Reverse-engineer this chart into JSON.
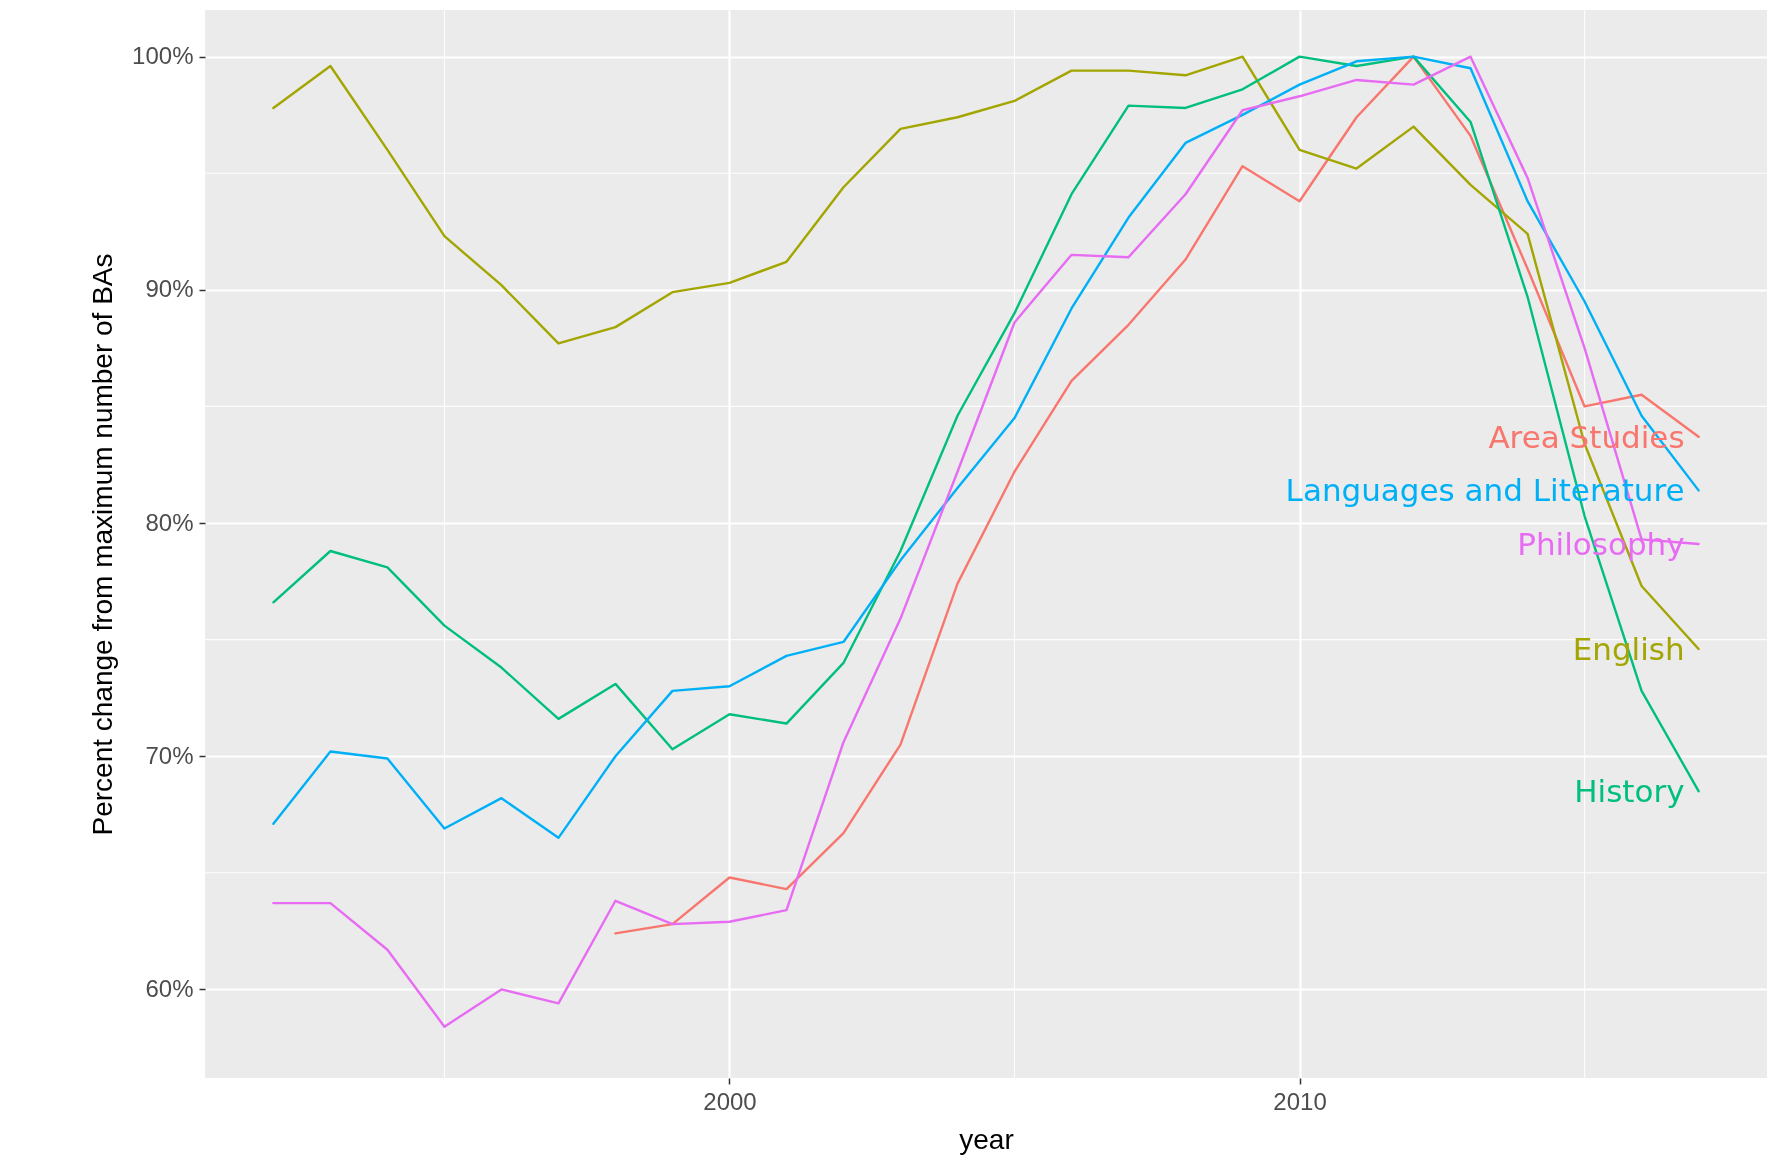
{
  "chart_data": {
    "type": "line",
    "xlabel": "year",
    "ylabel": "Percent change from maximum number of BAs",
    "x": [
      1992,
      1993,
      1994,
      1995,
      1996,
      1997,
      1998,
      1999,
      2000,
      2001,
      2002,
      2003,
      2004,
      2005,
      2006,
      2007,
      2008,
      2009,
      2010,
      2011,
      2012,
      2013,
      2014,
      2015,
      2016,
      2017
    ],
    "series": [
      {
        "name": "Area Studies",
        "color": "#f8766d",
        "values": [
          null,
          null,
          null,
          null,
          null,
          null,
          62.4,
          62.8,
          64.8,
          64.3,
          66.7,
          70.5,
          77.4,
          82.2,
          86.1,
          88.5,
          91.3,
          95.3,
          93.8,
          97.4,
          100,
          96.6,
          90.9,
          85.0,
          85.5,
          83.7
        ]
      },
      {
        "name": "English",
        "color": "#a3a500",
        "values": [
          97.8,
          99.6,
          96.0,
          92.3,
          90.2,
          87.7,
          88.4,
          89.9,
          90.3,
          91.2,
          94.4,
          96.9,
          97.4,
          98.1,
          99.4,
          99.4,
          99.2,
          100,
          96.0,
          95.2,
          97.0,
          94.5,
          92.4,
          83.4,
          77.3,
          74.6
        ]
      },
      {
        "name": "History",
        "color": "#00bf7d",
        "values": [
          76.6,
          78.8,
          78.1,
          75.6,
          73.8,
          71.6,
          73.1,
          70.3,
          71.8,
          71.4,
          74.0,
          78.8,
          84.6,
          89.0,
          94.1,
          97.9,
          97.8,
          98.6,
          100,
          99.6,
          100,
          97.2,
          89.7,
          80.3,
          72.8,
          68.5
        ]
      },
      {
        "name": "Languages and Literature",
        "color": "#00b0f6",
        "values": [
          67.1,
          70.2,
          69.9,
          66.9,
          68.2,
          66.5,
          70.0,
          72.8,
          73.0,
          74.3,
          74.9,
          78.4,
          81.5,
          84.5,
          89.2,
          93.1,
          96.3,
          97.5,
          98.8,
          99.8,
          100,
          99.5,
          93.8,
          89.5,
          84.6,
          81.4
        ]
      },
      {
        "name": "Philosophy",
        "color": "#e76bf3",
        "values": [
          63.7,
          63.7,
          61.7,
          58.4,
          60.0,
          59.4,
          63.8,
          62.8,
          62.9,
          63.4,
          70.6,
          75.9,
          82.2,
          88.6,
          91.5,
          91.4,
          94.1,
          97.7,
          98.3,
          99.0,
          98.8,
          100,
          94.8,
          87.5,
          79.3,
          79.1
        ]
      }
    ],
    "xlim": [
      1990.8,
      2018.2
    ],
    "xticks": [
      2000,
      2010
    ],
    "ylim": [
      56.2,
      102
    ],
    "yticks": [
      {
        "value": 60,
        "label": "60%"
      },
      {
        "value": 70,
        "label": "70%"
      },
      {
        "value": 80,
        "label": "80%"
      },
      {
        "value": 90,
        "label": "90%"
      },
      {
        "value": 100,
        "label": "100%"
      }
    ],
    "grid": true
  }
}
